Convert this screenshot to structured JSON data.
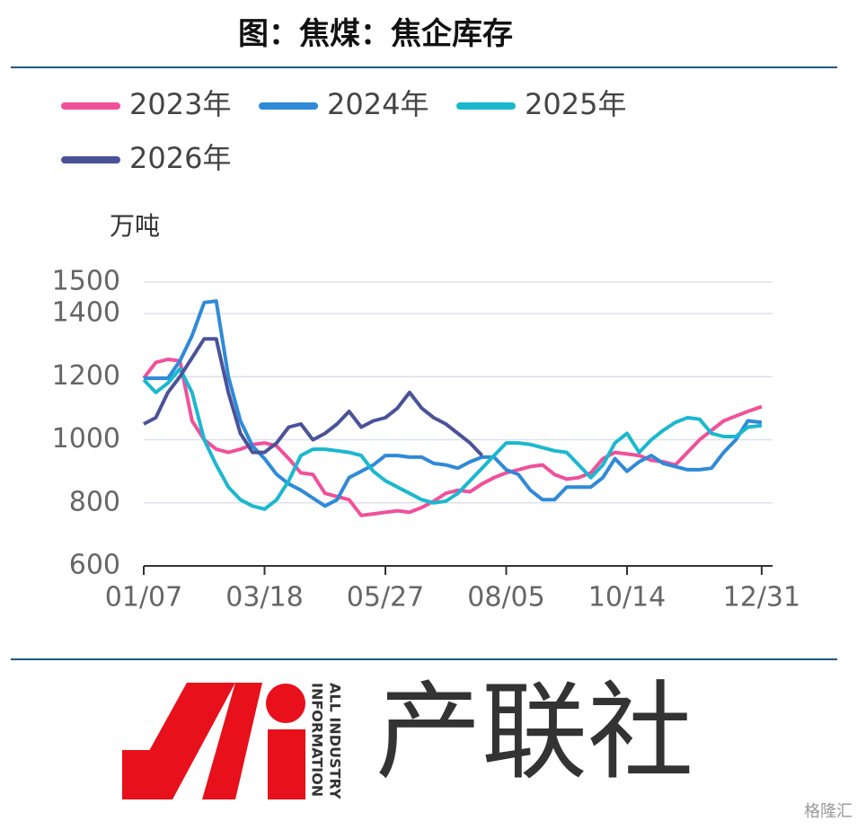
{
  "chart_data": {
    "type": "line",
    "title": "图：焦煤：焦企库存",
    "ylabel": "万吨",
    "x": [
      "01/07",
      "01/14",
      "01/21",
      "01/28",
      "02/04",
      "02/11",
      "02/18",
      "02/25",
      "03/04",
      "03/11",
      "03/18",
      "03/25",
      "04/01",
      "04/08",
      "04/15",
      "04/22",
      "04/29",
      "05/06",
      "05/13",
      "05/20",
      "05/27",
      "06/03",
      "06/10",
      "06/17",
      "06/24",
      "07/01",
      "07/08",
      "07/15",
      "07/22",
      "07/29",
      "08/05",
      "08/12",
      "08/19",
      "08/26",
      "09/02",
      "09/09",
      "09/16",
      "09/23",
      "09/30",
      "10/07",
      "10/14",
      "10/21",
      "10/28",
      "11/04",
      "11/11",
      "11/18",
      "11/25",
      "12/02",
      "12/09",
      "12/16",
      "12/23",
      "12/31"
    ],
    "xticks": [
      "01/07",
      "03/18",
      "05/27",
      "08/05",
      "10/14",
      "12/31"
    ],
    "ylim": [
      600,
      1500
    ],
    "yticks": [
      600,
      800,
      1000,
      1200,
      1400,
      1500
    ],
    "grid": true,
    "legend": "top-left",
    "series": [
      {
        "name": "2023年",
        "color": "#f0509a",
        "values": [
          1195,
          1245,
          1255,
          1250,
          1060,
          1000,
          970,
          960,
          970,
          985,
          990,
          980,
          940,
          895,
          890,
          830,
          820,
          810,
          760,
          765,
          770,
          775,
          770,
          785,
          805,
          830,
          840,
          835,
          860,
          880,
          895,
          905,
          915,
          920,
          890,
          875,
          880,
          895,
          940,
          960,
          955,
          950,
          935,
          930,
          920,
          960,
          1000,
          1030,
          1060,
          1075,
          1090,
          1105
        ]
      },
      {
        "name": "2024年",
        "color": "#2f8ad8",
        "values": [
          1195,
          1195,
          1195,
          1250,
          1330,
          1435,
          1440,
          1200,
          1060,
          980,
          940,
          890,
          860,
          840,
          815,
          790,
          810,
          880,
          900,
          920,
          950,
          950,
          945,
          945,
          925,
          920,
          910,
          930,
          945,
          945,
          905,
          890,
          840,
          810,
          810,
          850,
          850,
          850,
          880,
          940,
          900,
          930,
          950,
          925,
          915,
          905,
          905,
          910,
          960,
          1000,
          1060,
          1055
        ]
      },
      {
        "name": "2025年",
        "color": "#1ab8cf",
        "values": [
          1190,
          1150,
          1180,
          1225,
          1150,
          1000,
          920,
          850,
          810,
          790,
          780,
          810,
          870,
          950,
          970,
          970,
          965,
          960,
          950,
          900,
          870,
          850,
          830,
          810,
          800,
          805,
          830,
          870,
          910,
          950,
          990,
          990,
          985,
          975,
          965,
          960,
          920,
          880,
          920,
          990,
          1020,
          960,
          1000,
          1030,
          1055,
          1070,
          1065,
          1020,
          1010,
          1010,
          1040,
          1045
        ]
      },
      {
        "name": "2026年",
        "color": "#4a5299",
        "values": [
          1050,
          1070,
          1150,
          1200,
          1260,
          1320,
          1320,
          1150,
          1020,
          960,
          960,
          990,
          1040,
          1050,
          1000,
          1020,
          1050,
          1090,
          1040,
          1060,
          1070,
          1100,
          1150,
          1100,
          1070,
          1050,
          1020,
          990,
          950,
          null,
          null,
          null,
          null,
          null,
          null,
          null,
          null,
          null,
          null,
          null,
          null,
          null,
          null,
          null,
          null,
          null,
          null,
          null,
          null,
          null,
          null,
          null
        ]
      }
    ]
  },
  "brand": {
    "name": "产联社",
    "tagline_1": "ALL INDUSTRY",
    "tagline_2": "INFORMATION",
    "watermark": "格隆汇"
  }
}
